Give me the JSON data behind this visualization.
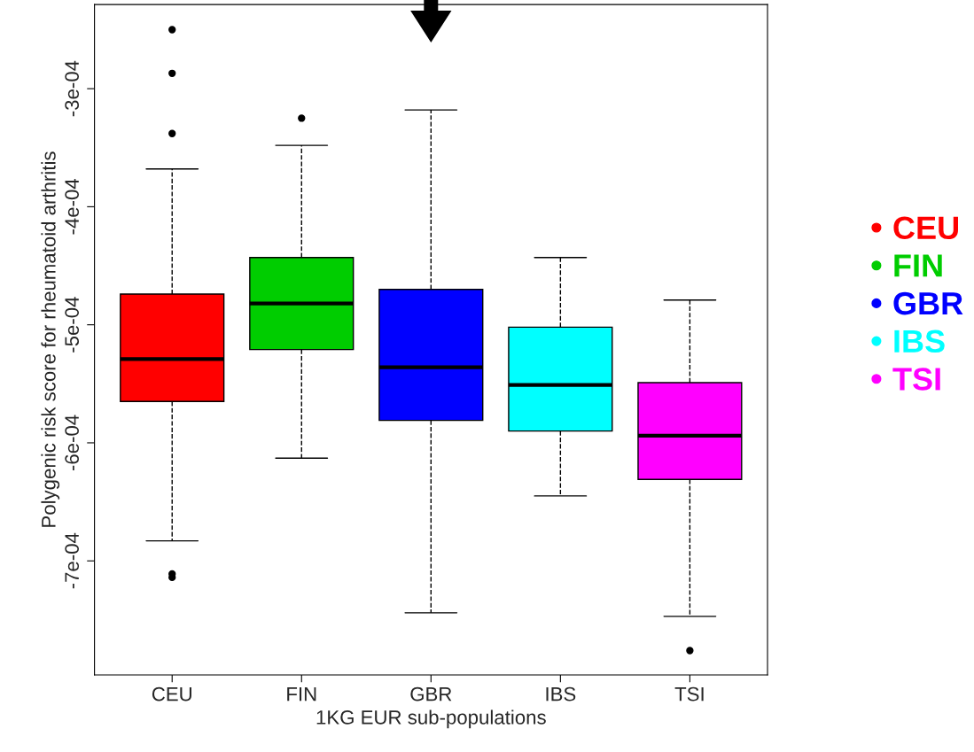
{
  "chart_data": {
    "type": "box",
    "xlabel": "1KG EUR sub-populations",
    "ylabel": "Polygenic risk score for rheumatoid arthritis",
    "categories": [
      "CEU",
      "FIN",
      "GBR",
      "IBS",
      "TSI"
    ],
    "series": [
      {
        "name": "CEU",
        "color": "#ff0000",
        "boxes": [
          {
            "low": -0.000683,
            "q1": -0.000565,
            "median": -0.000529,
            "q3": -0.000474,
            "high": -0.000368,
            "outliers": [
              -0.00025,
              -0.000287,
              -0.000338,
              -0.000711,
              -0.000714
            ]
          },
          null,
          null,
          null,
          null
        ]
      },
      {
        "name": "FIN",
        "color": "#00cd00",
        "boxes": [
          null,
          {
            "low": -0.000613,
            "q1": -0.000521,
            "median": -0.000482,
            "q3": -0.000443,
            "high": -0.000348,
            "outliers": [
              -0.000325
            ]
          },
          null,
          null,
          null
        ]
      },
      {
        "name": "GBR",
        "color": "#0000ff",
        "boxes": [
          null,
          null,
          {
            "low": -0.000744,
            "q1": -0.000581,
            "median": -0.000536,
            "q3": -0.00047,
            "high": -0.000318
          },
          null,
          null
        ]
      },
      {
        "name": "IBS",
        "color": "#00ffff",
        "boxes": [
          null,
          null,
          null,
          {
            "low": -0.000645,
            "q1": -0.00059,
            "median": -0.000551,
            "q3": -0.000502,
            "high": -0.000443
          },
          null
        ]
      },
      {
        "name": "TSI",
        "color": "#ff00ff",
        "boxes": [
          null,
          null,
          null,
          null,
          {
            "low": -0.000747,
            "q1": -0.000631,
            "median": -0.000594,
            "q3": -0.000549,
            "high": -0.000479,
            "outliers": [
              -0.000776
            ]
          }
        ]
      }
    ],
    "ylim": [
      -0.0007966,
      -0.0002287
    ],
    "yticks": [
      {
        "value": -0.0003,
        "label": "-3e-04"
      },
      {
        "value": -0.0004,
        "label": "-4e-04"
      },
      {
        "value": -0.0005,
        "label": "-5e-04"
      },
      {
        "value": -0.0006,
        "label": "-6e-04"
      },
      {
        "value": -0.0007,
        "label": "-7e-04"
      }
    ],
    "grid": false,
    "legend": "right"
  }
}
